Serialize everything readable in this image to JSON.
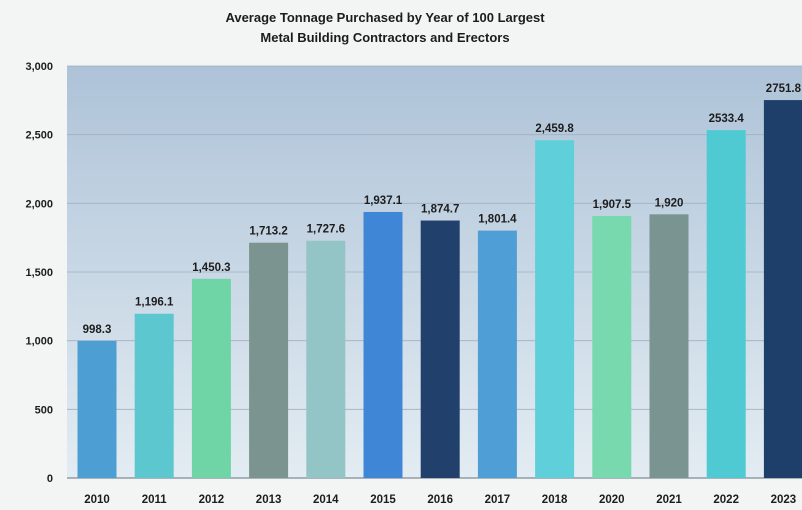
{
  "chart_data": {
    "type": "bar",
    "title": [
      "Average Tonnage Purchased by Year of 100 Largest",
      "Metal Building Contractors and Erectors"
    ],
    "categories": [
      "2010",
      "2011",
      "2012",
      "2013",
      "2014",
      "2015",
      "2016",
      "2017",
      "2018",
      "2020",
      "2021",
      "2022",
      "2023"
    ],
    "values": [
      998.3,
      1196.1,
      1450.3,
      1713.2,
      1727.6,
      1937.1,
      1874.7,
      1801.4,
      2459.8,
      1907.5,
      1920,
      2533.4,
      2751.8
    ],
    "data_labels": [
      "998.3",
      "1,196.1",
      "1,450.3",
      "1,713.2",
      "1,727.6",
      "1,937.1",
      "1,874.7",
      "1,801.4",
      "2,459.8",
      "1,907.5",
      "1,920",
      "2533.4",
      "2751.8"
    ],
    "bar_colors": [
      "#4d9ed2",
      "#5dc7cf",
      "#6fd5a6",
      "#7b9490",
      "#93c4c6",
      "#3f86d6",
      "#21406b",
      "#4f9fd6",
      "#5fd0da",
      "#78d8ae",
      "#7a9491",
      "#4fcad2",
      "#1d3f6a"
    ],
    "ylim": [
      0,
      3000
    ],
    "yticks": [
      0,
      500,
      1000,
      1500,
      2000,
      2500,
      3000
    ],
    "ytick_labels": [
      "0",
      "500",
      "1,000",
      "1,500",
      "2,000",
      "2,500",
      "3,000"
    ],
    "xlabel": "",
    "ylabel": "",
    "grid": true,
    "plot_background": [
      "#aec3d8",
      "#e3ecf2"
    ]
  }
}
